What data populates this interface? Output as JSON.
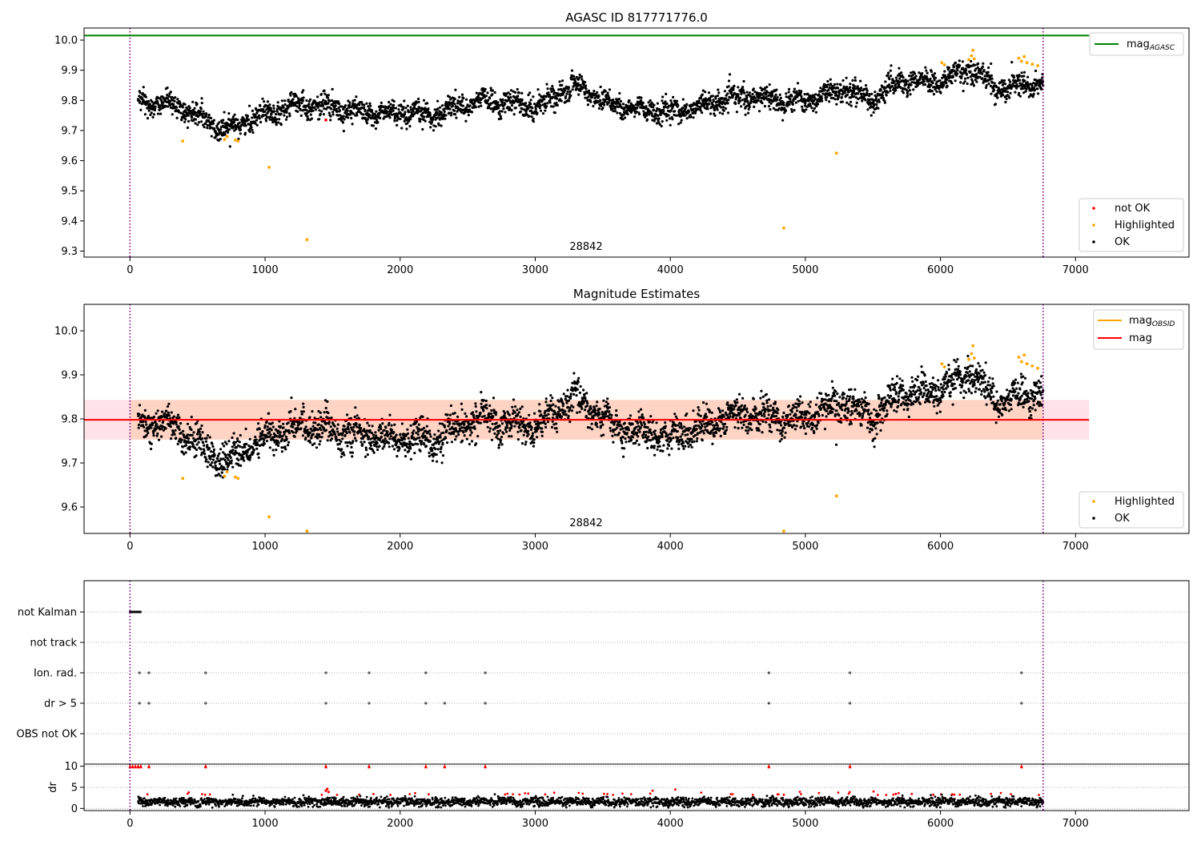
{
  "colors": {
    "ok": "#000000",
    "highlighted": "#ffa500",
    "not_ok": "#ff0000",
    "agasc_line": "#008000",
    "obsid_line": "#ffa500",
    "mean_line": "#ff0000",
    "band_pink": "#ffc0cb",
    "band_orange": "#ffc8a8",
    "obs_boundary": "#800080",
    "grid": "#b0b0b0"
  },
  "chart_data": [
    {
      "type": "scatter",
      "title": "AGASC ID 817771776.0",
      "xlim": [
        -340,
        7840
      ],
      "ylim": [
        9.28,
        10.04
      ],
      "xticks": [
        0,
        1000,
        2000,
        3000,
        4000,
        5000,
        6000,
        7000
      ],
      "xtick_labels": [
        "0",
        "1000",
        "2000",
        "3000",
        "4000",
        "5000",
        "6000",
        "7000"
      ],
      "yticks": [
        9.3,
        9.4,
        9.5,
        9.6,
        9.7,
        9.8,
        9.9,
        10.0
      ],
      "ytick_labels": [
        "9.3",
        "9.4",
        "9.5",
        "9.6",
        "9.7",
        "9.8",
        "9.9",
        "10.0"
      ],
      "obs_boundaries": [
        0,
        6760
      ],
      "obsid_annotation": {
        "x": 3370,
        "text": "28842"
      },
      "line_agasc": {
        "y": 10.015,
        "x_range": [
          -340,
          7100
        ]
      },
      "legend_lines": [
        {
          "label_main": "mag",
          "label_sub": "AGASC",
          "series": "agasc"
        }
      ],
      "legend_points": [
        {
          "label": "not OK",
          "series": "not_ok"
        },
        {
          "label": "Highlighted",
          "series": "highlighted"
        },
        {
          "label": "OK",
          "series": "ok"
        }
      ],
      "series": [
        {
          "name": "OK",
          "x_range": [
            60,
            6760
          ],
          "n": 3300,
          "trend": [
            [
              60,
              9.79
            ],
            [
              300,
              9.79
            ],
            [
              700,
              9.7
            ],
            [
              1000,
              9.76
            ],
            [
              1300,
              9.79
            ],
            [
              1700,
              9.76
            ],
            [
              2200,
              9.75
            ],
            [
              2600,
              9.8
            ],
            [
              3000,
              9.78
            ],
            [
              3300,
              9.85
            ],
            [
              3600,
              9.78
            ],
            [
              4000,
              9.76
            ],
            [
              4500,
              9.81
            ],
            [
              5000,
              9.8
            ],
            [
              5300,
              9.84
            ],
            [
              5500,
              9.8
            ],
            [
              5700,
              9.86
            ],
            [
              6000,
              9.86
            ],
            [
              6230,
              9.91
            ],
            [
              6400,
              9.84
            ],
            [
              6760,
              9.86
            ]
          ]
        },
        {
          "name": "Highlighted",
          "points": [
            [
              390,
              9.665
            ],
            [
              700,
              9.67
            ],
            [
              720,
              9.68
            ],
            [
              780,
              9.668
            ],
            [
              800,
              9.665
            ],
            [
              1030,
              9.578
            ],
            [
              1310,
              9.338
            ],
            [
              4840,
              9.376
            ],
            [
              5230,
              9.625
            ],
            [
              6010,
              9.925
            ],
            [
              6030,
              9.918
            ],
            [
              6210,
              9.935
            ],
            [
              6230,
              9.948
            ],
            [
              6240,
              9.966
            ],
            [
              6250,
              9.938
            ],
            [
              6580,
              9.94
            ],
            [
              6600,
              9.93
            ],
            [
              6620,
              9.945
            ],
            [
              6640,
              9.925
            ],
            [
              6680,
              9.92
            ],
            [
              6720,
              9.915
            ]
          ]
        },
        {
          "name": "not OK",
          "points": [
            [
              1450,
              9.735
            ]
          ]
        }
      ]
    },
    {
      "type": "scatter",
      "title": "Magnitude Estimates",
      "xlim": [
        -340,
        7840
      ],
      "ylim": [
        9.54,
        10.06
      ],
      "xticks": [
        0,
        1000,
        2000,
        3000,
        4000,
        5000,
        6000,
        7000
      ],
      "xtick_labels": [
        "0",
        "1000",
        "2000",
        "3000",
        "4000",
        "5000",
        "6000",
        "7000"
      ],
      "yticks": [
        9.6,
        9.7,
        9.8,
        9.9,
        10.0
      ],
      "ytick_labels": [
        "9.6",
        "9.7",
        "9.8",
        "9.9",
        "10.0"
      ],
      "obs_boundaries": [
        0,
        6760
      ],
      "obsid_annotation": {
        "x": 3370,
        "text": "28842"
      },
      "mean_line": {
        "y": 9.798,
        "x_range": [
          -340,
          7100
        ]
      },
      "mean_band": {
        "low": 9.753,
        "high": 9.843,
        "x_range": [
          -340,
          7100
        ]
      },
      "obsid_band": {
        "low": 9.753,
        "high": 9.843,
        "x_range": [
          0,
          6760
        ]
      },
      "legend_lines": [
        {
          "label_main": "mag",
          "label_sub": "OBSID",
          "series": "obsid"
        },
        {
          "label_main": "mag",
          "label_sub": "",
          "series": "mean"
        }
      ],
      "legend_points": [
        {
          "label": "Highlighted",
          "series": "highlighted"
        },
        {
          "label": "OK",
          "series": "ok"
        }
      ],
      "series": [
        {
          "name": "OK",
          "x_range": [
            60,
            6760
          ],
          "n": 3300,
          "trend": [
            [
              60,
              9.79
            ],
            [
              300,
              9.79
            ],
            [
              700,
              9.7
            ],
            [
              1000,
              9.76
            ],
            [
              1300,
              9.79
            ],
            [
              1700,
              9.76
            ],
            [
              2200,
              9.75
            ],
            [
              2600,
              9.8
            ],
            [
              3000,
              9.78
            ],
            [
              3300,
              9.85
            ],
            [
              3600,
              9.78
            ],
            [
              4000,
              9.76
            ],
            [
              4500,
              9.81
            ],
            [
              5000,
              9.8
            ],
            [
              5300,
              9.84
            ],
            [
              5500,
              9.8
            ],
            [
              5700,
              9.86
            ],
            [
              6000,
              9.86
            ],
            [
              6230,
              9.91
            ],
            [
              6400,
              9.84
            ],
            [
              6760,
              9.86
            ]
          ]
        },
        {
          "name": "Highlighted",
          "points": [
            [
              390,
              9.665
            ],
            [
              700,
              9.67
            ],
            [
              720,
              9.68
            ],
            [
              780,
              9.668
            ],
            [
              800,
              9.665
            ],
            [
              1030,
              9.578
            ],
            [
              1310,
              9.545
            ],
            [
              4840,
              9.545
            ],
            [
              5230,
              9.625
            ],
            [
              6010,
              9.925
            ],
            [
              6030,
              9.918
            ],
            [
              6210,
              9.935
            ],
            [
              6230,
              9.948
            ],
            [
              6240,
              9.966
            ],
            [
              6250,
              9.938
            ],
            [
              6580,
              9.94
            ],
            [
              6600,
              9.93
            ],
            [
              6620,
              9.945
            ],
            [
              6640,
              9.925
            ],
            [
              6680,
              9.92
            ],
            [
              6720,
              9.915
            ]
          ]
        }
      ]
    },
    {
      "type": "scatter",
      "title": "",
      "xlim": [
        -340,
        7840
      ],
      "categories": [
        "not Kalman",
        "not track",
        "Ion. rad.",
        "dr > 5",
        "OBS not OK"
      ],
      "obs_boundaries": [
        0,
        6760
      ],
      "flags": [
        {
          "label": "not Kalman",
          "x_range": [
            0,
            80
          ]
        },
        {
          "label": "not track",
          "x": []
        },
        {
          "label": "Ion. rad.",
          "x": [
            70,
            140,
            560,
            1450,
            1770,
            2190,
            2630,
            4730,
            5330,
            6600
          ]
        },
        {
          "label": "dr > 5",
          "x": [
            70,
            140,
            560,
            1450,
            1770,
            2190,
            2330,
            2630,
            4730,
            5330,
            6600
          ]
        },
        {
          "label": "OBS not OK",
          "x": []
        }
      ]
    },
    {
      "type": "scatter",
      "title": "",
      "ylabel": "dr",
      "xlim": [
        -340,
        7840
      ],
      "ylim": [
        -0.5,
        10.5
      ],
      "xticks": [
        0,
        1000,
        2000,
        3000,
        4000,
        5000,
        6000,
        7000
      ],
      "xtick_labels": [
        "0",
        "1000",
        "2000",
        "3000",
        "4000",
        "5000",
        "6000",
        "7000"
      ],
      "yticks": [
        0,
        5,
        10
      ],
      "ytick_labels": [
        "0",
        "5",
        "10"
      ],
      "obs_boundaries": [
        0,
        6760
      ],
      "series": [
        {
          "name": "OK",
          "x_range": [
            60,
            6760
          ],
          "n": 3000,
          "y_mean": 1.6
        },
        {
          "name": "not OK",
          "clip_points_x": [
            0,
            20,
            40,
            60,
            80,
            140,
            560,
            1450,
            1770,
            2190,
            2330,
            2630,
            4730,
            5330,
            6600
          ],
          "clip_y": 10
        },
        {
          "name": "not OK",
          "cluster_points": [
            [
              1450,
              4.2
            ],
            [
              1460,
              4.6
            ],
            [
              1470,
              3.9
            ]
          ]
        }
      ]
    }
  ]
}
